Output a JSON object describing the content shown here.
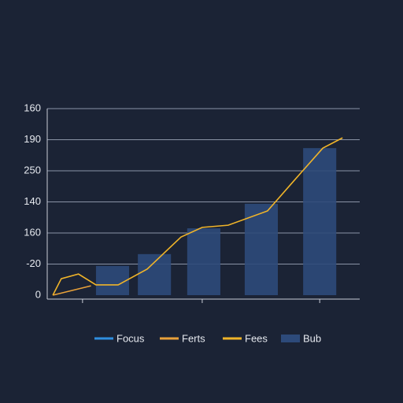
{
  "chart_data": {
    "type": "combo",
    "xlim": [
      0,
      10
    ],
    "xticks": [
      1.13,
      4.96,
      8.72
    ],
    "ylim": [
      0,
      6
    ],
    "yticks": [
      {
        "value": 0,
        "label": "0"
      },
      {
        "value": 1,
        "label": "-20"
      },
      {
        "value": 2,
        "label": "160"
      },
      {
        "value": 3,
        "label": "140"
      },
      {
        "value": 4,
        "label": "250"
      },
      {
        "value": 5,
        "label": "190"
      },
      {
        "value": 6,
        "label": "160"
      }
    ],
    "grid": true,
    "series": [
      {
        "name": "Focus",
        "type": "line",
        "color": "#2f8fe0",
        "x": [],
        "values": []
      },
      {
        "name": "Ferts",
        "type": "line",
        "color": "#e8a13a",
        "x": [
          0.18,
          1.4
        ],
        "values": [
          0,
          0.3
        ]
      },
      {
        "name": "Fees",
        "type": "line",
        "color": "#f0b429",
        "x": [
          0.18,
          0.45,
          1.0,
          1.56,
          2.27,
          3.2,
          4.28,
          4.96,
          5.79,
          7.05,
          7.93,
          8.82,
          9.45
        ],
        "values": [
          0,
          0.53,
          0.68,
          0.33,
          0.33,
          0.84,
          1.87,
          2.18,
          2.25,
          2.71,
          3.72,
          4.73,
          5.06
        ]
      },
      {
        "name": "Bub",
        "type": "bar",
        "color": "#2d4a7a",
        "x": [
          2.09,
          3.43,
          5.01,
          6.85,
          8.72
        ],
        "values": [
          0.94,
          1.32,
          2.15,
          2.94,
          4.73
        ]
      }
    ]
  }
}
